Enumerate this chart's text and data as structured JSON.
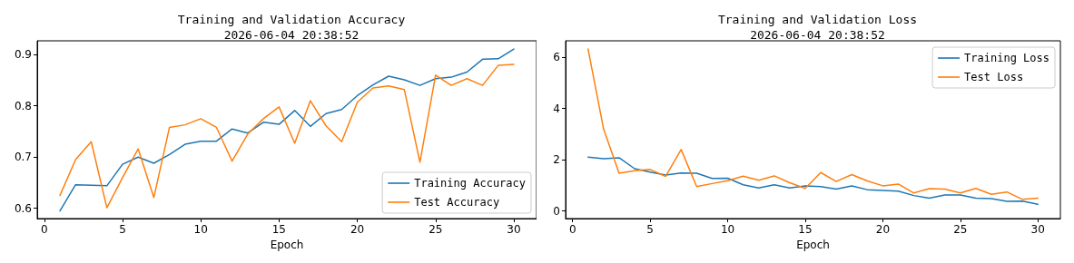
{
  "chart_data": [
    {
      "type": "line",
      "title": "Training and Validation Accuracy",
      "subtitle": "2026-06-04 20:38:52",
      "xlabel": "Epoch",
      "x": [
        1,
        2,
        3,
        4,
        5,
        6,
        7,
        8,
        9,
        10,
        11,
        12,
        13,
        14,
        15,
        16,
        17,
        18,
        19,
        20,
        21,
        22,
        23,
        24,
        25,
        26,
        27,
        28,
        29,
        30
      ],
      "series": [
        {
          "name": "Training Accuracy",
          "color": "#1f77b4",
          "values": [
            0.595,
            0.646,
            0.645,
            0.644,
            0.686,
            0.7,
            0.688,
            0.705,
            0.725,
            0.731,
            0.731,
            0.755,
            0.747,
            0.768,
            0.764,
            0.791,
            0.76,
            0.785,
            0.793,
            0.82,
            0.841,
            0.858,
            0.851,
            0.84,
            0.853,
            0.856,
            0.866,
            0.891,
            0.892,
            0.911
          ]
        },
        {
          "name": "Test Accuracy",
          "color": "#ff7f0e",
          "values": [
            0.625,
            0.695,
            0.73,
            0.601,
            0.66,
            0.716,
            0.621,
            0.758,
            0.763,
            0.775,
            0.758,
            0.692,
            0.745,
            0.775,
            0.798,
            0.727,
            0.81,
            0.761,
            0.73,
            0.807,
            0.835,
            0.839,
            0.832,
            0.69,
            0.86,
            0.84,
            0.853,
            0.84,
            0.879,
            0.881
          ]
        }
      ],
      "xlim": [
        -0.45,
        31.45
      ],
      "xticks": [
        0,
        5,
        10,
        15,
        20,
        25,
        30
      ],
      "ylim": [
        0.58,
        0.927
      ],
      "yticks": [
        0.6,
        0.7,
        0.8,
        0.9
      ],
      "grid": false,
      "legend": "bottom right",
      "marker": "none",
      "line_style": "solid"
    },
    {
      "type": "line",
      "title": "Training and Validation Loss",
      "subtitle": "2026-06-04 20:38:52",
      "xlabel": "Epoch",
      "x": [
        1,
        2,
        3,
        4,
        5,
        6,
        7,
        8,
        9,
        10,
        11,
        12,
        13,
        14,
        15,
        16,
        17,
        18,
        19,
        20,
        21,
        22,
        23,
        24,
        25,
        26,
        27,
        28,
        29,
        30
      ],
      "series": [
        {
          "name": "Training Loss",
          "color": "#1f77b4",
          "values": [
            2.1,
            2.04,
            2.08,
            1.65,
            1.52,
            1.4,
            1.48,
            1.47,
            1.27,
            1.28,
            1.02,
            0.9,
            1.02,
            0.9,
            0.98,
            0.95,
            0.85,
            0.98,
            0.83,
            0.8,
            0.77,
            0.6,
            0.5,
            0.62,
            0.62,
            0.5,
            0.48,
            0.37,
            0.38,
            0.26
          ]
        },
        {
          "name": "Test Loss",
          "color": "#ff7f0e",
          "values": [
            6.33,
            3.2,
            1.47,
            1.57,
            1.62,
            1.35,
            2.4,
            0.95,
            1.07,
            1.18,
            1.36,
            1.2,
            1.37,
            1.1,
            0.88,
            1.5,
            1.15,
            1.42,
            1.17,
            0.98,
            1.05,
            0.7,
            0.87,
            0.85,
            0.7,
            0.88,
            0.65,
            0.74,
            0.45,
            0.5
          ]
        }
      ],
      "xlim": [
        -0.45,
        31.45
      ],
      "xticks": [
        0,
        5,
        10,
        15,
        20,
        25,
        30
      ],
      "ylim": [
        -0.3,
        6.65
      ],
      "yticks": [
        0,
        2,
        4,
        6
      ],
      "grid": false,
      "legend": "top right",
      "marker": "none",
      "line_style": "solid"
    }
  ]
}
